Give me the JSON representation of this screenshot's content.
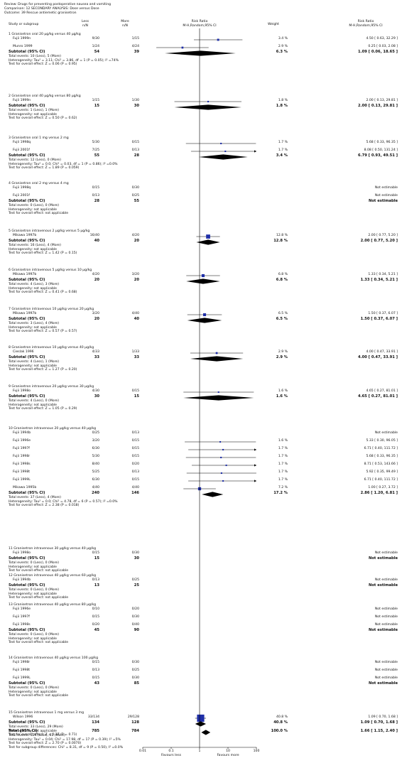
{
  "header": {
    "review": "Review:  Drugs for preventing postoperative nausea and vomiting",
    "comparison": "Comparison:  12 SECONDARY ANALYSIS: Dose versus Dose",
    "outcome": "Outcome:  39 Rescue antiemetic granisetron"
  },
  "columns": {
    "study": "Study or subgroup",
    "exp": "Less",
    "exp_sub": "n/N",
    "ctrl": "More",
    "ctrl_sub": "n/N",
    "rr1": "Risk Ratio",
    "rr1_sub": "M-H,Random,95% CI",
    "weight": "Weight",
    "rr2": "Risk Ratio",
    "rr2_sub": "M-H,Random,95% CI"
  },
  "groups": [
    {
      "title": "1 Granisetron oral 20 µg/kg versus 40 µg/kg",
      "studies": [
        {
          "name": "Fujii 1999n",
          "exp": "9/30",
          "ctrl": "1/15",
          "weight": "3.4 %",
          "est": "4.50 [ 0.63, 32.29 ]",
          "rr": 4.5,
          "lo": 0.63,
          "hi": 32.29,
          "w": 3.4
        },
        {
          "name": "Munro 1999",
          "exp": "1/24",
          "ctrl": "4/24",
          "weight": "2.9 %",
          "est": "0.25 [ 0.03, 2.08 ]",
          "rr": 0.25,
          "lo": 0.03,
          "hi": 2.08,
          "w": 2.9
        }
      ],
      "subtotal": {
        "label": "Subtotal (95% CI)",
        "exp": "54",
        "ctrl": "39",
        "weight": "6.3 %",
        "est": "1.09 [ 0.06, 18.65 ]",
        "rr": 1.09,
        "lo": 0.06,
        "hi": 18.65
      },
      "notes": [
        "Total events: 10 (Less), 5 (More)",
        "Heterogeneity: Tau² = 3.11; Chi² = 3.86, df = 1 (P = 0.05); I² =74%",
        "Test for overall effect: Z = 0.06 (P = 0.95)"
      ]
    },
    {
      "title": "2 Granisetron oral 40 µg/kg versus 80 µg/kg",
      "studies": [
        {
          "name": "Fujii 1999n",
          "exp": "1/15",
          "ctrl": "1/30",
          "weight": "1.8 %",
          "est": "2.00 [ 0.13, 29.81 ]",
          "rr": 2.0,
          "lo": 0.13,
          "hi": 29.81,
          "w": 1.8
        }
      ],
      "subtotal": {
        "label": "Subtotal (95% CI)",
        "exp": "15",
        "ctrl": "30",
        "weight": "1.8 %",
        "est": "2.00 [ 0.13, 29.81 ]",
        "rr": 2.0,
        "lo": 0.13,
        "hi": 29.81
      },
      "notes": [
        "Total events: 1 (Less), 1 (More)",
        "Heterogeneity: not applicable",
        "Test for overall effect: Z = 0.50 (P = 0.62)"
      ]
    },
    {
      "title": "3 Granisetron oral 1 mg versus 2 mg",
      "studies": [
        {
          "name": "Fujii 1998q",
          "exp": "5/30",
          "ctrl": "0/15",
          "weight": "1.7 %",
          "est": "5.68 [ 0.33, 96.35 ]",
          "rr": 5.68,
          "lo": 0.33,
          "hi": 96.35,
          "w": 1.7
        },
        {
          "name": "Fujii 2001f",
          "exp": "7/25",
          "ctrl": "0/13",
          "weight": "1.7 %",
          "est": "8.08 [ 0.50, 131.24 ]",
          "rr": 8.08,
          "lo": 0.5,
          "hi": 131.24,
          "w": 1.7
        }
      ],
      "subtotal": {
        "label": "Subtotal (95% CI)",
        "exp": "55",
        "ctrl": "28",
        "weight": "3.4 %",
        "est": "6.79 [ 0.93, 49.51 ]",
        "rr": 6.79,
        "lo": 0.93,
        "hi": 49.51
      },
      "notes": [
        "Total events: 12 (Less), 0 (More)",
        "Heterogeneity: Tau² = 0.0; Chi² = 0.03, df = 1 (P = 0.86); I² =0.0%",
        "Test for overall effect: Z = 1.89 (P = 0.059)"
      ]
    },
    {
      "title": "4 Granisetron oral 2 mg versus 4 mg",
      "studies": [
        {
          "name": "Fujii 1998q",
          "exp": "0/15",
          "ctrl": "0/30",
          "weight": "",
          "est": "Not estimable"
        },
        {
          "name": "Fujii 2001f",
          "exp": "0/13",
          "ctrl": "0/25",
          "weight": "",
          "est": "Not estimable"
        }
      ],
      "subtotal": {
        "label": "Subtotal (95% CI)",
        "exp": "28",
        "ctrl": "55",
        "weight": "",
        "est": "Not estimable"
      },
      "notes": [
        "Total events: 0 (Less), 0 (More)",
        "Heterogeneity: not applicable",
        "Test for overall effect: not applicable"
      ]
    },
    {
      "title": "5 Granisetron intravenous 2 µg/kg versus 5 µg/kg",
      "studies": [
        {
          "name": "Mikawa 1997b",
          "exp": "16/40",
          "ctrl": "4/20",
          "weight": "12.8 %",
          "est": "2.00 [ 0.77, 5.20 ]",
          "rr": 2.0,
          "lo": 0.77,
          "hi": 5.2,
          "w": 12.8
        }
      ],
      "subtotal": {
        "label": "Subtotal (95% CI)",
        "exp": "40",
        "ctrl": "20",
        "weight": "12.8 %",
        "est": "2.00 [ 0.77, 5.20 ]",
        "rr": 2.0,
        "lo": 0.77,
        "hi": 5.2
      },
      "notes": [
        "Total events: 16 (Less), 4 (More)",
        "Heterogeneity: not applicable",
        "Test for overall effect: Z = 1.42 (P = 0.15)"
      ]
    },
    {
      "title": "6 Granisetron intravenous 5 µg/kg versus 10 µg/kg",
      "studies": [
        {
          "name": "Mikawa 1997b",
          "exp": "4/20",
          "ctrl": "3/20",
          "weight": "6.8 %",
          "est": "1.33 [ 0.34, 5.21 ]",
          "rr": 1.33,
          "lo": 0.34,
          "hi": 5.21,
          "w": 6.8
        }
      ],
      "subtotal": {
        "label": "Subtotal (95% CI)",
        "exp": "20",
        "ctrl": "20",
        "weight": "6.8 %",
        "est": "1.33 [ 0.34, 5.21 ]",
        "rr": 1.33,
        "lo": 0.34,
        "hi": 5.21
      },
      "notes": [
        "Total events: 4 (Less), 3 (More)",
        "Heterogeneity: not applicable",
        "Test for overall effect: Z = 0.41 (P = 0.68)"
      ]
    },
    {
      "title": "7 Granisetron intravenous 10 µg/kg versus 20 µg/kg",
      "studies": [
        {
          "name": "Mikawa 1997b",
          "exp": "3/20",
          "ctrl": "4/40",
          "weight": "6.5 %",
          "est": "1.50 [ 0.37, 6.07 ]",
          "rr": 1.5,
          "lo": 0.37,
          "hi": 6.07,
          "w": 6.5
        }
      ],
      "subtotal": {
        "label": "Subtotal (95% CI)",
        "exp": "20",
        "ctrl": "40",
        "weight": "6.5 %",
        "est": "1.50 [ 0.37, 6.07 ]",
        "rr": 1.5,
        "lo": 0.37,
        "hi": 6.07
      },
      "notes": [
        "Total events: 3 (Less), 4 (More)",
        "Heterogeneity: not applicable",
        "Test for overall effect: Z = 0.57 (P = 0.57)"
      ]
    },
    {
      "title": "8 Granisetron intravenous 10 µg/kg versus 40 µg/kg",
      "studies": [
        {
          "name": "Cieslak 1996",
          "exp": "4/33",
          "ctrl": "1/33",
          "weight": "2.9 %",
          "est": "4.00 [ 0.47, 33.91 ]",
          "rr": 4.0,
          "lo": 0.47,
          "hi": 33.91,
          "w": 2.9
        }
      ],
      "subtotal": {
        "label": "Subtotal (95% CI)",
        "exp": "33",
        "ctrl": "33",
        "weight": "2.9 %",
        "est": "4.00 [ 0.47, 33.91 ]",
        "rr": 4.0,
        "lo": 0.47,
        "hi": 33.91
      },
      "notes": [
        "Total events: 4 (Less), 1 (More)",
        "Heterogeneity: not applicable",
        "Test for overall effect: Z = 1.27 (P = 0.20)"
      ]
    },
    {
      "title": "9 Granisetron intravenous 20 µg/kg versus 30 µg/kg",
      "studies": [
        {
          "name": "Fujii 1998o",
          "exp": "4/30",
          "ctrl": "0/15",
          "weight": "1.6 %",
          "est": "4.65 [ 0.27, 81.01 ]",
          "rr": 4.65,
          "lo": 0.27,
          "hi": 81.01,
          "w": 1.6
        }
      ],
      "subtotal": {
        "label": "Subtotal (95% CI)",
        "exp": "30",
        "ctrl": "15",
        "weight": "1.6 %",
        "est": "4.65 [ 0.27, 81.01 ]",
        "rr": 4.65,
        "lo": 0.27,
        "hi": 81.01
      },
      "notes": [
        "Total events: 4 (Less), 0 (More)",
        "Heterogeneity: not applicable",
        "Test for overall effect: Z = 1.05 (P = 0.29)"
      ]
    },
    {
      "title": "10 Granisetron intravenous 20 µg/kg versus 40 µg/kg",
      "studies": [
        {
          "name": "Fujii 1994b",
          "exp": "0/25",
          "ctrl": "0/13",
          "weight": "",
          "est": "Not estimable"
        },
        {
          "name": "Fujii 1996e",
          "exp": "3/20",
          "ctrl": "0/15",
          "weight": "1.6 %",
          "est": "5.33 [ 0.30, 96.05 ]",
          "rr": 5.33,
          "lo": 0.3,
          "hi": 96.05,
          "w": 1.6
        },
        {
          "name": "Fujii 1997f",
          "exp": "6/30",
          "ctrl": "0/15",
          "weight": "1.7 %",
          "est": "6.71 [ 0.40, 111.72 ]",
          "rr": 6.71,
          "lo": 0.4,
          "hi": 111.72,
          "w": 1.7
        },
        {
          "name": "Fujii 1998r",
          "exp": "5/30",
          "ctrl": "0/15",
          "weight": "1.7 %",
          "est": "5.68 [ 0.33, 96.35 ]",
          "rr": 5.68,
          "lo": 0.33,
          "hi": 96.35,
          "w": 1.7
        },
        {
          "name": "Fujii 1998s",
          "exp": "8/40",
          "ctrl": "0/20",
          "weight": "1.7 %",
          "est": "8.71 [ 0.53, 143.66 ]",
          "rr": 8.71,
          "lo": 0.53,
          "hi": 143.66,
          "w": 1.7
        },
        {
          "name": "Fujii 1998t",
          "exp": "5/25",
          "ctrl": "0/13",
          "weight": "1.7 %",
          "est": "5.92 [ 0.35, 99.49 ]",
          "rr": 5.92,
          "lo": 0.35,
          "hi": 99.49,
          "w": 1.7
        },
        {
          "name": "Fujii 1999L",
          "exp": "6/30",
          "ctrl": "0/15",
          "weight": "1.7 %",
          "est": "6.71 [ 0.40, 111.72 ]",
          "rr": 6.71,
          "lo": 0.4,
          "hi": 111.72,
          "w": 1.7
        },
        {
          "name": "Mikawa 1995b",
          "exp": "4/40",
          "ctrl": "4/40",
          "weight": "7.2 %",
          "est": "1.00 [ 0.27, 3.72 ]",
          "rr": 1.0,
          "lo": 0.27,
          "hi": 3.72,
          "w": 7.2
        }
      ],
      "subtotal": {
        "label": "Subtotal (95% CI)",
        "exp": "240",
        "ctrl": "146",
        "weight": "17.2 %",
        "est": "2.86 [ 1.20, 6.81 ]",
        "rr": 2.86,
        "lo": 1.2,
        "hi": 6.81
      },
      "notes": [
        "Total events: 37 (Less), 4 (More)",
        "Heterogeneity: Tau² = 0.0; Chi² = 4.78, df = 6 (P = 0.57); I² =0.0%",
        "Test for overall effect: Z = 2.38 (P = 0.018)"
      ]
    },
    {
      "title": "11 Granisetron intravenous 30 µg/kg versus 40 µg/kg",
      "studies": [
        {
          "name": "Fujii 1998o",
          "exp": "0/15",
          "ctrl": "0/30",
          "weight": "",
          "est": "Not estimable"
        }
      ],
      "subtotal": {
        "label": "Subtotal (95% CI)",
        "exp": "15",
        "ctrl": "30",
        "weight": "",
        "est": "Not estimable"
      },
      "notes": [
        "Total events: 0 (Less), 0 (More)",
        "Heterogeneity: not applicable",
        "Test for overall effect: not applicable"
      ]
    },
    {
      "title": "12 Granisetron intravenous 40 µg/kg versus 60 µg/kg",
      "studies": [
        {
          "name": "Fujii 1994b",
          "exp": "0/13",
          "ctrl": "0/25",
          "weight": "",
          "est": "Not estimable"
        }
      ],
      "subtotal": {
        "label": "Subtotal (95% CI)",
        "exp": "13",
        "ctrl": "25",
        "weight": "",
        "est": "Not estimable"
      },
      "notes": [
        "Total events: 0 (Less), 0 (More)",
        "Heterogeneity: not applicable",
        "Test for overall effect: not applicable"
      ]
    },
    {
      "title": "13 Granisetron intravenous 40 µg/kg versus 80 µg/kg",
      "studies": [
        {
          "name": "Fujii 1996e",
          "exp": "0/10",
          "ctrl": "0/20",
          "weight": "",
          "est": "Not estimable"
        },
        {
          "name": "Fujii 1997f",
          "exp": "0/15",
          "ctrl": "0/30",
          "weight": "",
          "est": "Not estimable"
        },
        {
          "name": "Fujii 1998s",
          "exp": "0/20",
          "ctrl": "0/40",
          "weight": "",
          "est": "Not estimable"
        }
      ],
      "subtotal": {
        "label": "Subtotal (95% CI)",
        "exp": "45",
        "ctrl": "90",
        "weight": "",
        "est": "Not estimable"
      },
      "notes": [
        "Total events: 0 (Less), 0 (More)",
        "Heterogeneity: not applicable",
        "Test for overall effect: not applicable"
      ]
    },
    {
      "title": "14 Granisetron intravenous 40 µg/kg versus 100 µg/kg",
      "studies": [
        {
          "name": "Fujii 1998r",
          "exp": "0/15",
          "ctrl": "0/30",
          "weight": "",
          "est": "Not estimable"
        },
        {
          "name": "Fujii 1998t",
          "exp": "0/13",
          "ctrl": "0/25",
          "weight": "",
          "est": "Not estimable"
        },
        {
          "name": "Fujii 1999L",
          "exp": "0/15",
          "ctrl": "0/30",
          "weight": "",
          "est": "Not estimable"
        }
      ],
      "subtotal": {
        "label": "Subtotal (95% CI)",
        "exp": "43",
        "ctrl": "85",
        "weight": "",
        "est": "Not estimable"
      },
      "notes": [
        "Total events: 0 (Less), 0 (More)",
        "Heterogeneity: not applicable",
        "Test for overall effect: not applicable"
      ]
    },
    {
      "title": "15 Granisetron intravenous 1 mg versus 3 mg",
      "studies": [
        {
          "name": "Wilson 1996",
          "exp": "33/134",
          "ctrl": "29/128",
          "weight": "40.8 %",
          "est": "1.09 [ 0.70, 1.68 ]",
          "rr": 1.09,
          "lo": 0.7,
          "hi": 1.68,
          "w": 40.8
        }
      ],
      "subtotal": {
        "label": "Subtotal (95% CI)",
        "exp": "134",
        "ctrl": "128",
        "weight": "40.8 %",
        "est": "1.09 [ 0.70, 1.68 ]",
        "rr": 1.09,
        "lo": 0.7,
        "hi": 1.68
      },
      "notes": [
        "Total events: 33 (Less), 29 (More)",
        "Heterogeneity: not applicable",
        "Test for overall effect: Z = 0.37 (P = 0.71)"
      ]
    }
  ],
  "total": {
    "label": "Total (95% CI)",
    "exp": "785",
    "ctrl": "784",
    "weight": "100.0 %",
    "est": "1.66 [ 1.15, 2.40 ]",
    "rr": 1.66,
    "lo": 1.15,
    "hi": 2.4,
    "notes": [
      "Total events: 124 (Less), 51 (More)",
      "Heterogeneity: Tau² = 0.04; Chi² = 17.98, df = 17 (P = 0.39); I² =5%",
      "Test for overall effect: Z = 2.70 (P = 0.0070)",
      "Test for subgroup differences: Chi² = 8.31, df = 9 (P = 0.50), I² =0.0%"
    ]
  },
  "axis": {
    "ticks": [
      {
        "v": 0.01,
        "label": "0.01"
      },
      {
        "v": 0.1,
        "label": "0.1"
      },
      {
        "v": 1,
        "label": "1"
      },
      {
        "v": 10,
        "label": "10"
      },
      {
        "v": 100,
        "label": "100"
      }
    ],
    "left_label": "Favours less",
    "right_label": "Favours more"
  },
  "chart_data": {
    "type": "forest",
    "scale": "log",
    "xlim": [
      0.01,
      100
    ],
    "null_line": 1,
    "colors": {
      "study_marker": "#1f2fa8",
      "diamond": "#000000"
    }
  }
}
